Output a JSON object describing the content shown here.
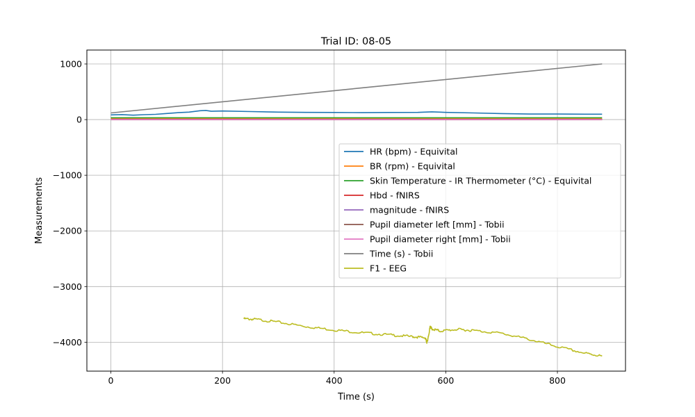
{
  "chart_data": {
    "type": "line",
    "title": "Trial ID: 08-05",
    "xlabel": "Time (s)",
    "ylabel": "Measurements",
    "xlim": [
      -43,
      922
    ],
    "ylim": [
      -4520,
      1250
    ],
    "xticks": [
      0,
      200,
      400,
      600,
      800
    ],
    "yticks": [
      -4000,
      -3000,
      -2000,
      -1000,
      0,
      1000
    ],
    "xtick_labels": [
      "0",
      "200",
      "400",
      "600",
      "800"
    ],
    "ytick_labels": [
      "−4000",
      "−3000",
      "−2000",
      "−1000",
      "0",
      "1000"
    ],
    "grid": true,
    "legend_position": "center-right",
    "series": [
      {
        "name": "HR (bpm) - Equivital",
        "color": "#1f77b4",
        "x": [
          0,
          20,
          40,
          60,
          80,
          100,
          120,
          140,
          160,
          170,
          180,
          200,
          250,
          300,
          350,
          400,
          450,
          500,
          550,
          575,
          600,
          650,
          700,
          750,
          800,
          850,
          880
        ],
        "y": [
          85,
          90,
          80,
          88,
          95,
          110,
          125,
          135,
          160,
          165,
          150,
          155,
          145,
          135,
          130,
          128,
          125,
          128,
          130,
          140,
          130,
          120,
          108,
          100,
          100,
          97,
          97
        ]
      },
      {
        "name": "BR (rpm) - Equivital",
        "color": "#ff7f0e",
        "x": [
          0,
          880
        ],
        "y": [
          18,
          18
        ]
      },
      {
        "name": "Skin Temperature - IR Thermometer (°C) - Equivital",
        "color": "#2ca02c",
        "x": [
          0,
          880
        ],
        "y": [
          33,
          33
        ]
      },
      {
        "name": "Hbd - fNIRS",
        "color": "#d62728",
        "x": [
          0,
          880
        ],
        "y": [
          0,
          0
        ]
      },
      {
        "name": "magnitude - fNIRS",
        "color": "#9467bd",
        "x": [
          0,
          880
        ],
        "y": [
          2,
          2
        ]
      },
      {
        "name": "Pupil diameter left [mm] - Tobii",
        "color": "#8c564b",
        "x": [
          0,
          880
        ],
        "y": [
          4,
          4
        ]
      },
      {
        "name": "Pupil diameter right [mm] - Tobii",
        "color": "#e377c2",
        "x": [
          0,
          880
        ],
        "y": [
          4,
          4
        ]
      },
      {
        "name": "Time (s) - Tobii",
        "color": "#7f7f7f",
        "x": [
          0,
          880
        ],
        "y": [
          120,
          1000
        ]
      },
      {
        "name": "F1 - EEG",
        "color": "#bcbd22",
        "x": [
          238,
          260,
          300,
          350,
          400,
          450,
          500,
          540,
          563,
          566,
          568,
          572,
          575,
          590,
          620,
          650,
          700,
          750,
          800,
          850,
          880
        ],
        "y": [
          -3580,
          -3590,
          -3640,
          -3720,
          -3780,
          -3830,
          -3870,
          -3900,
          -3920,
          -4000,
          -3950,
          -3720,
          -3760,
          -3800,
          -3770,
          -3790,
          -3840,
          -3950,
          -4080,
          -4200,
          -4250
        ]
      }
    ]
  }
}
